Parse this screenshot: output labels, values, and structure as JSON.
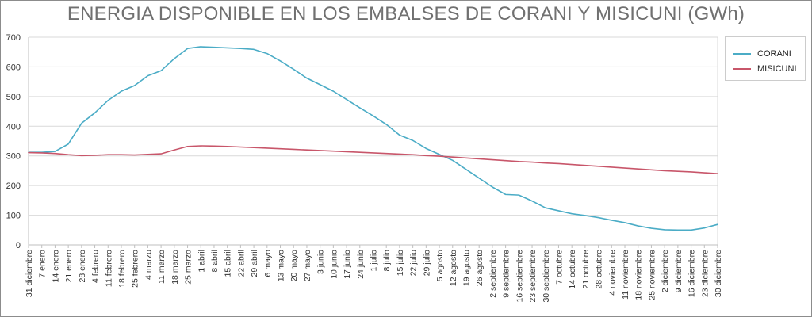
{
  "chart_data": {
    "type": "line",
    "title": "ENERGIA DISPONIBLE EN LOS EMBALSES DE CORANI Y MISICUNI (GWh)",
    "xlabel": "",
    "ylabel": "",
    "ylim": [
      0,
      700
    ],
    "yticks": [
      0,
      100,
      200,
      300,
      400,
      500,
      600,
      700
    ],
    "grid": true,
    "legend_position": "top-right",
    "categories": [
      "31 diciembre",
      "7 enero",
      "14 enero",
      "21 enero",
      "28 enero",
      "4 febrero",
      "11 febrero",
      "18 febrero",
      "25 febrero",
      "4 marzo",
      "11 marzo",
      "18 marzo",
      "25 marzo",
      "1 abril",
      "8 abril",
      "15 abril",
      "22 abril",
      "29 abril",
      "6 mayo",
      "13 mayo",
      "20 mayo",
      "27 mayo",
      "3 junio",
      "10 junio",
      "17 junio",
      "24 junio",
      "1 julio",
      "8 julio",
      "15 julio",
      "22 julio",
      "29 julio",
      "5 agosto",
      "12 agosto",
      "19 agosto",
      "26 agosto",
      "2 septiembre",
      "9 septiembre",
      "16 septiembre",
      "23 septiembre",
      "30 septiembre",
      "7 octubre",
      "14 octubre",
      "21 octubre",
      "28 octubre",
      "4 noviembre",
      "11 noviembre",
      "18 noviembre",
      "25 noviembre",
      "2 diciembre",
      "9 diciembre",
      "16 diciembre",
      "23 diciembre",
      "30 diciembre"
    ],
    "series": [
      {
        "name": "CORANI",
        "color": "#4bacc6",
        "values": [
          312,
          312,
          315,
          340,
          410,
          445,
          487,
          518,
          537,
          570,
          587,
          628,
          662,
          668,
          666,
          664,
          662,
          659,
          645,
          620,
          592,
          562,
          540,
          518,
          490,
          462,
          435,
          406,
          370,
          352,
          325,
          305,
          285,
          255,
          225,
          195,
          170,
          168,
          148,
          125,
          115,
          105,
          99,
          92,
          83,
          75,
          64,
          56,
          51,
          50,
          50,
          57,
          69
        ]
      },
      {
        "name": "MISICUNI",
        "color": "#c8566a",
        "values": [
          311,
          310,
          308,
          304,
          301,
          302,
          304,
          304,
          303,
          305,
          307,
          320,
          332,
          334,
          333,
          332,
          330,
          328,
          326,
          324,
          322,
          320,
          318,
          316,
          314,
          312,
          310,
          308,
          306,
          304,
          301,
          299,
          296,
          293,
          290,
          287,
          284,
          281,
          279,
          276,
          274,
          271,
          268,
          265,
          262,
          259,
          256,
          253,
          250,
          248,
          246,
          243,
          240
        ]
      }
    ]
  }
}
